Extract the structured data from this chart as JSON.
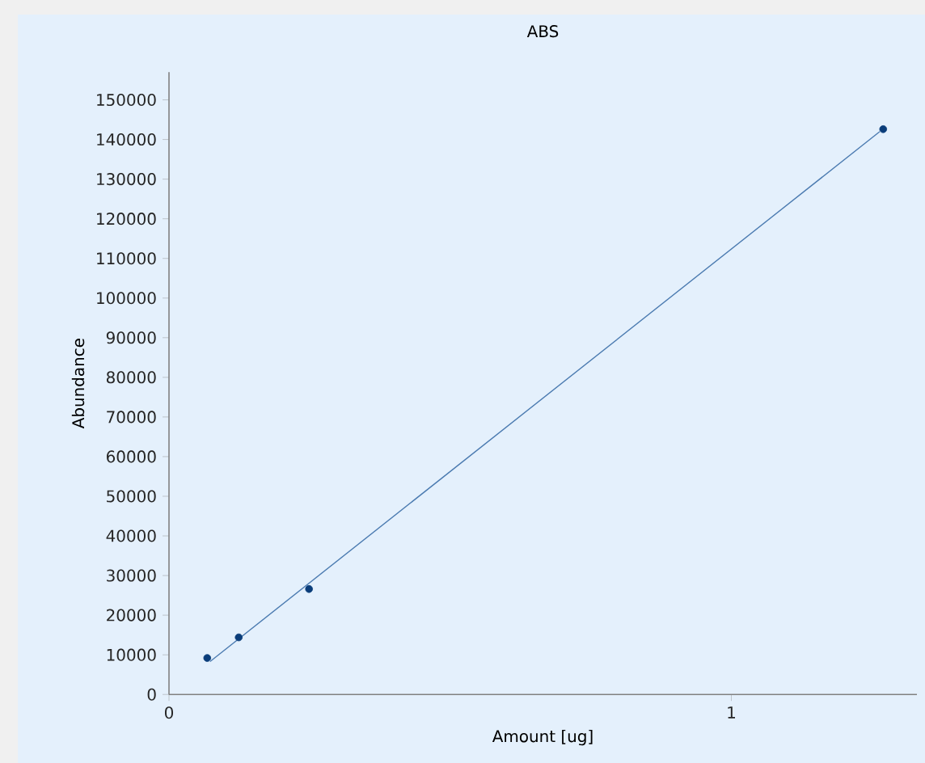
{
  "chart_data": {
    "type": "scatter",
    "title": "ABS",
    "xlabel": "Amount [ug]",
    "ylabel": "Abundance",
    "xlim": [
      0,
      1.33
    ],
    "xticks": [
      0,
      1
    ],
    "ylim": [
      0,
      157000
    ],
    "yticks": [
      0,
      10000,
      20000,
      30000,
      40000,
      50000,
      60000,
      70000,
      80000,
      90000,
      100000,
      110000,
      120000,
      130000,
      140000,
      150000
    ],
    "grid": false,
    "series": [
      {
        "color": "#0a3d7a",
        "marker": "circle",
        "x": [
          0.068,
          0.124,
          0.249,
          1.27
        ],
        "values": [
          9200,
          14400,
          26600,
          142600
        ]
      },
      {
        "type": "line",
        "color": "#4a7ab0",
        "marker": "none",
        "line_style": "solid",
        "x": [
          0.073,
          1.264
        ],
        "values": [
          8300,
          142000
        ]
      }
    ]
  }
}
